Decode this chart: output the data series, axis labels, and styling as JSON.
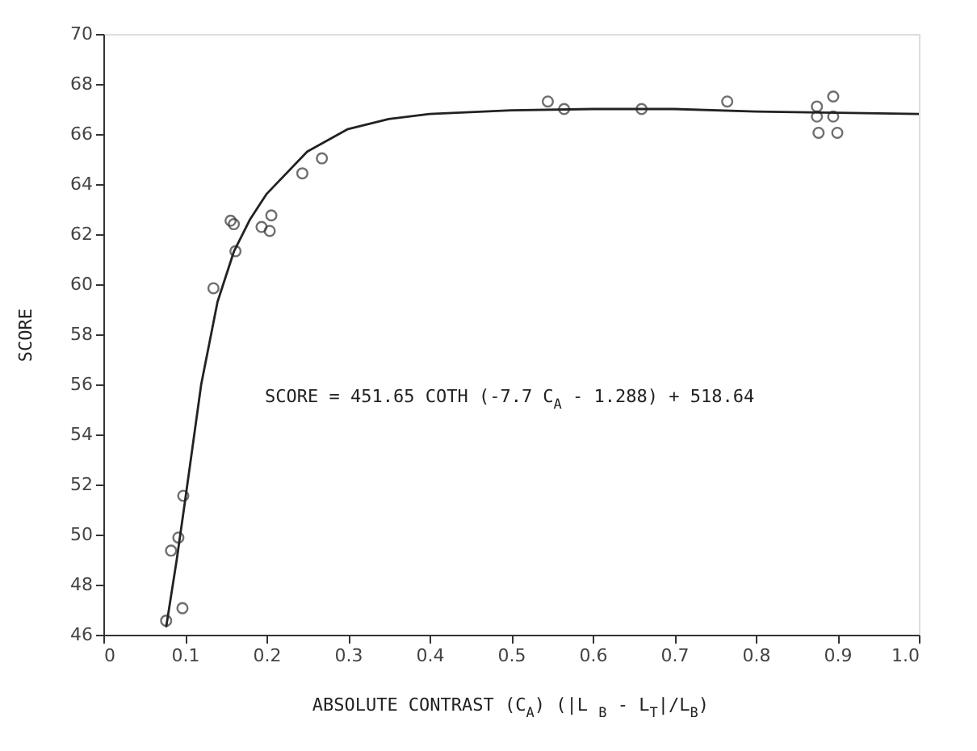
{
  "chart_data": {
    "type": "scatter",
    "xlabel": "ABSOLUTE CONTRAST (C$_{A}$)  (|L$_{B}$ - L$_{T}$|/L$_{B}$)",
    "ylabel": "SCORE",
    "annotations": [
      "SCORE = 451.65 COTH (-7.7 C$_{A}$ - 1.288) + 518.64"
    ],
    "xlim": [
      0,
      1
    ],
    "xticks": [
      {
        "value": 0,
        "label": "0"
      },
      0.1,
      0.2,
      0.3,
      0.4,
      0.5,
      0.6,
      0.7,
      0.8,
      0.9,
      {
        "value": 1,
        "label": "1.0"
      }
    ],
    "ylim": [
      46,
      70
    ],
    "yticks": [
      46,
      48,
      50,
      52,
      54,
      56,
      58,
      60,
      62,
      64,
      66,
      68,
      70
    ],
    "grid": false,
    "marker": "circle",
    "series": [
      {
        "type": "scatter",
        "color": "#333333",
        "x": [
          0.077,
          0.097,
          0.083,
          0.092,
          0.098,
          0.135,
          0.162,
          0.156,
          0.16,
          0.194,
          0.206,
          0.204,
          0.244,
          0.268,
          0.545,
          0.565,
          0.66,
          0.765,
          0.875,
          0.875,
          0.877,
          0.895,
          0.895,
          0.9
        ],
        "values": [
          46.56,
          47.06,
          49.36,
          49.88,
          51.55,
          59.84,
          61.32,
          62.54,
          62.4,
          62.29,
          62.75,
          62.13,
          64.43,
          65.03,
          67.3,
          67.0,
          67.0,
          67.3,
          67.1,
          66.7,
          66.05,
          67.5,
          66.7,
          66.05
        ]
      },
      {
        "type": "line",
        "color": "#222222",
        "marker": "none",
        "x": [
          0.077,
          0.09,
          0.1,
          0.12,
          0.14,
          0.16,
          0.18,
          0.2,
          0.25,
          0.3,
          0.35,
          0.4,
          0.5,
          0.6,
          0.7,
          0.8,
          0.9,
          1.0
        ],
        "values": [
          46.3,
          49,
          51.3,
          56,
          59.3,
          61.3,
          62.6,
          63.6,
          65.3,
          66.2,
          66.6,
          66.8,
          66.95,
          67.0,
          67.0,
          66.9,
          66.85,
          66.8
        ]
      }
    ]
  }
}
